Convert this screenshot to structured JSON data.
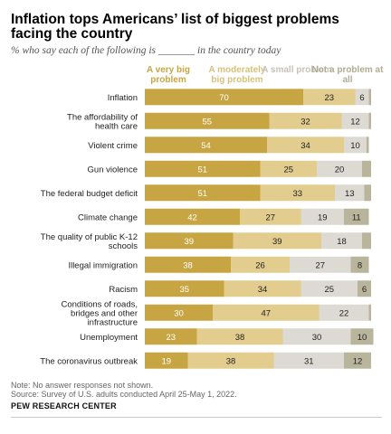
{
  "title": "Inflation tops Americans’ list of biggest problems facing the country",
  "subtitle": "% who say each of the following is _______ in the country today",
  "legend": [
    {
      "name": "A very big problem",
      "color": "#c8a543"
    },
    {
      "name": "A moderately big problem",
      "color": "#e2cd8f"
    },
    {
      "name": "A small problem",
      "color": "#dcdad2"
    },
    {
      "name": "Not a problem at all",
      "color": "#b9b59d"
    }
  ],
  "colors": {
    "series_text": [
      "#ffffff",
      "#222222",
      "#222222",
      "#222222"
    ],
    "legend_text": [
      "#c8a543",
      "#d8c07a",
      "#c6c3b8",
      "#b0ac93"
    ]
  },
  "chart_data": {
    "type": "bar",
    "stacked": true,
    "orientation": "horizontal",
    "xlim": [
      0,
      100
    ],
    "categories": [
      "Inflation",
      "The affordability of health care",
      "Violent crime",
      "Gun violence",
      "The federal budget deficit",
      "Climate change",
      "The quality of public K-12 schools",
      "Illegal immigration",
      "Racism",
      "Conditions of roads, bridges and other infrastructure",
      "Unemployment",
      "The coronavirus outbreak"
    ],
    "series": [
      {
        "name": "A very big problem",
        "values": [
          70,
          55,
          54,
          51,
          51,
          42,
          39,
          38,
          35,
          30,
          23,
          19
        ]
      },
      {
        "name": "A moderately big problem",
        "values": [
          23,
          32,
          34,
          25,
          33,
          27,
          39,
          26,
          34,
          47,
          38,
          38
        ]
      },
      {
        "name": "A small problem",
        "values": [
          6,
          12,
          10,
          20,
          13,
          19,
          18,
          27,
          25,
          22,
          30,
          31
        ]
      },
      {
        "name": "Not a problem at all",
        "values": [
          1,
          1,
          1,
          4,
          3,
          11,
          4,
          8,
          6,
          1,
          10,
          12
        ]
      }
    ],
    "shown_labels": [
      [
        "70",
        "23",
        "6",
        ""
      ],
      [
        "55",
        "32",
        "12",
        ""
      ],
      [
        "54",
        "34",
        "10",
        ""
      ],
      [
        "51",
        "25",
        "20",
        ""
      ],
      [
        "51",
        "33",
        "13",
        ""
      ],
      [
        "42",
        "27",
        "19",
        "11"
      ],
      [
        "39",
        "39",
        "18",
        ""
      ],
      [
        "38",
        "26",
        "27",
        "8"
      ],
      [
        "35",
        "34",
        "25",
        "6"
      ],
      [
        "30",
        "47",
        "22",
        ""
      ],
      [
        "23",
        "38",
        "30",
        "10"
      ],
      [
        "19",
        "38",
        "31",
        "12"
      ]
    ]
  },
  "notes": {
    "note": "Note: No answer responses not shown.",
    "source": "Source: Survey of U.S. adults conducted April 25-May 1, 2022.",
    "org": "PEW RESEARCH CENTER"
  }
}
